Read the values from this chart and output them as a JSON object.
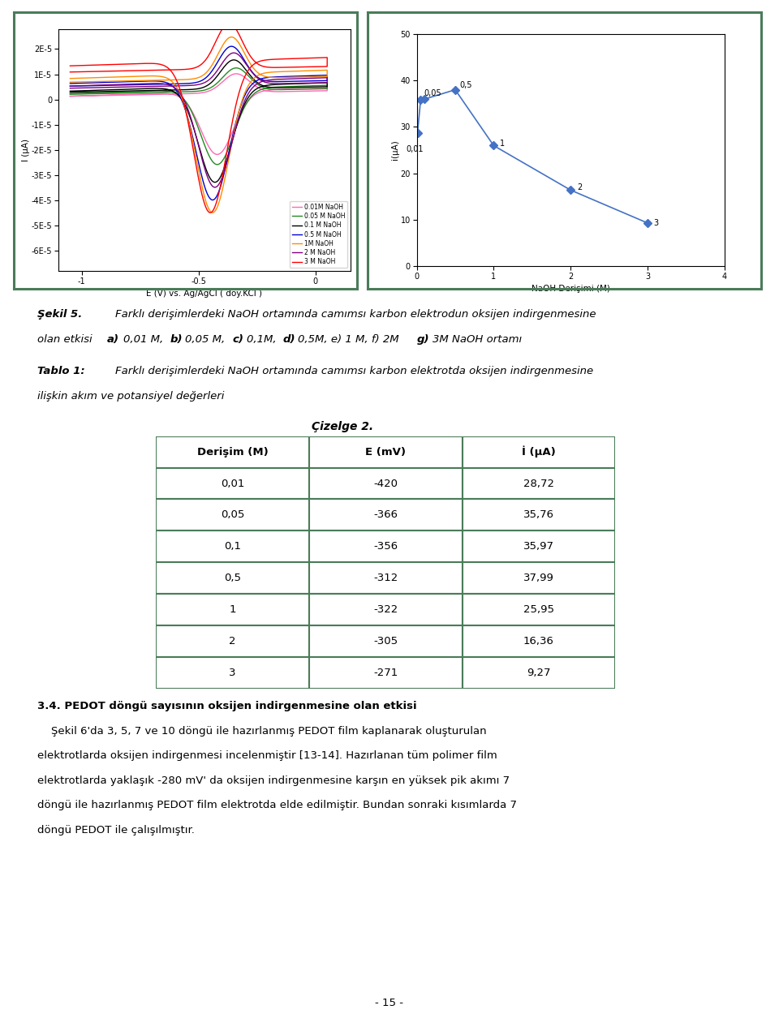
{
  "page_bg": "#ffffff",
  "border_color": "#4a7c59",
  "cv_xlabel": "E (V) vs. Ag/AgCl ( doy.KCl )",
  "cv_ylabel": "I (μA)",
  "cv_xlim": [
    -1.1,
    0.15
  ],
  "cv_ylim": [
    -6.8e-05,
    2.8e-05
  ],
  "cv_yticks": [
    -6e-05,
    -5e-05,
    -4e-05,
    -3e-05,
    -2e-05,
    -1e-05,
    0,
    1e-05,
    2e-05
  ],
  "cv_ytick_labels": [
    "-6E-5",
    "-5E-5",
    "-4E-5",
    "-3E-5",
    "-2E-5",
    "-1E-5",
    "0",
    "1E-5",
    "2E-5"
  ],
  "cv_xticks": [
    -1.0,
    -0.5,
    0.0
  ],
  "scatter_xlabel": "NaOH Derişimi (M)",
  "scatter_ylabel": "i(μA)",
  "scatter_xlim": [
    0,
    4
  ],
  "scatter_ylim": [
    0,
    50
  ],
  "scatter_xticks": [
    0,
    1,
    2,
    3,
    4
  ],
  "scatter_yticks": [
    0,
    10,
    20,
    30,
    40,
    50
  ],
  "scatter_x": [
    0.01,
    0.05,
    0.1,
    0.5,
    1,
    2,
    3
  ],
  "scatter_y": [
    28.72,
    35.76,
    35.97,
    37.99,
    25.95,
    16.36,
    9.27
  ],
  "scatter_color": "#4472c4",
  "legend_labels": [
    "0.01M NaOH",
    "0.05 M NaOH",
    "0.1 M NaOH",
    "0.5 M NaOH",
    "1M NaOH",
    "2 M NaOH",
    "3 M NaOH"
  ],
  "legend_colors": [
    "#ff69b4",
    "#228b22",
    "#000000",
    "#0000cd",
    "#ff8c00",
    "#800080",
    "#ff0000"
  ],
  "cizelge_title": "Çizelge 2.",
  "table_headers": [
    "Derişim (M)",
    "E (mV)",
    "İ (μA)"
  ],
  "table_rows": [
    [
      "0,01",
      "-420",
      "28,72"
    ],
    [
      "0,05",
      "-366",
      "35,76"
    ],
    [
      "0,1",
      "-356",
      "35,97"
    ],
    [
      "0,5",
      "-312",
      "37,99"
    ],
    [
      "1",
      "-322",
      "25,95"
    ],
    [
      "2",
      "-305",
      "16,36"
    ],
    [
      "3",
      "-271",
      "9,27"
    ]
  ],
  "table_border_color": "#4a7c59",
  "page_number": "- 15 -"
}
